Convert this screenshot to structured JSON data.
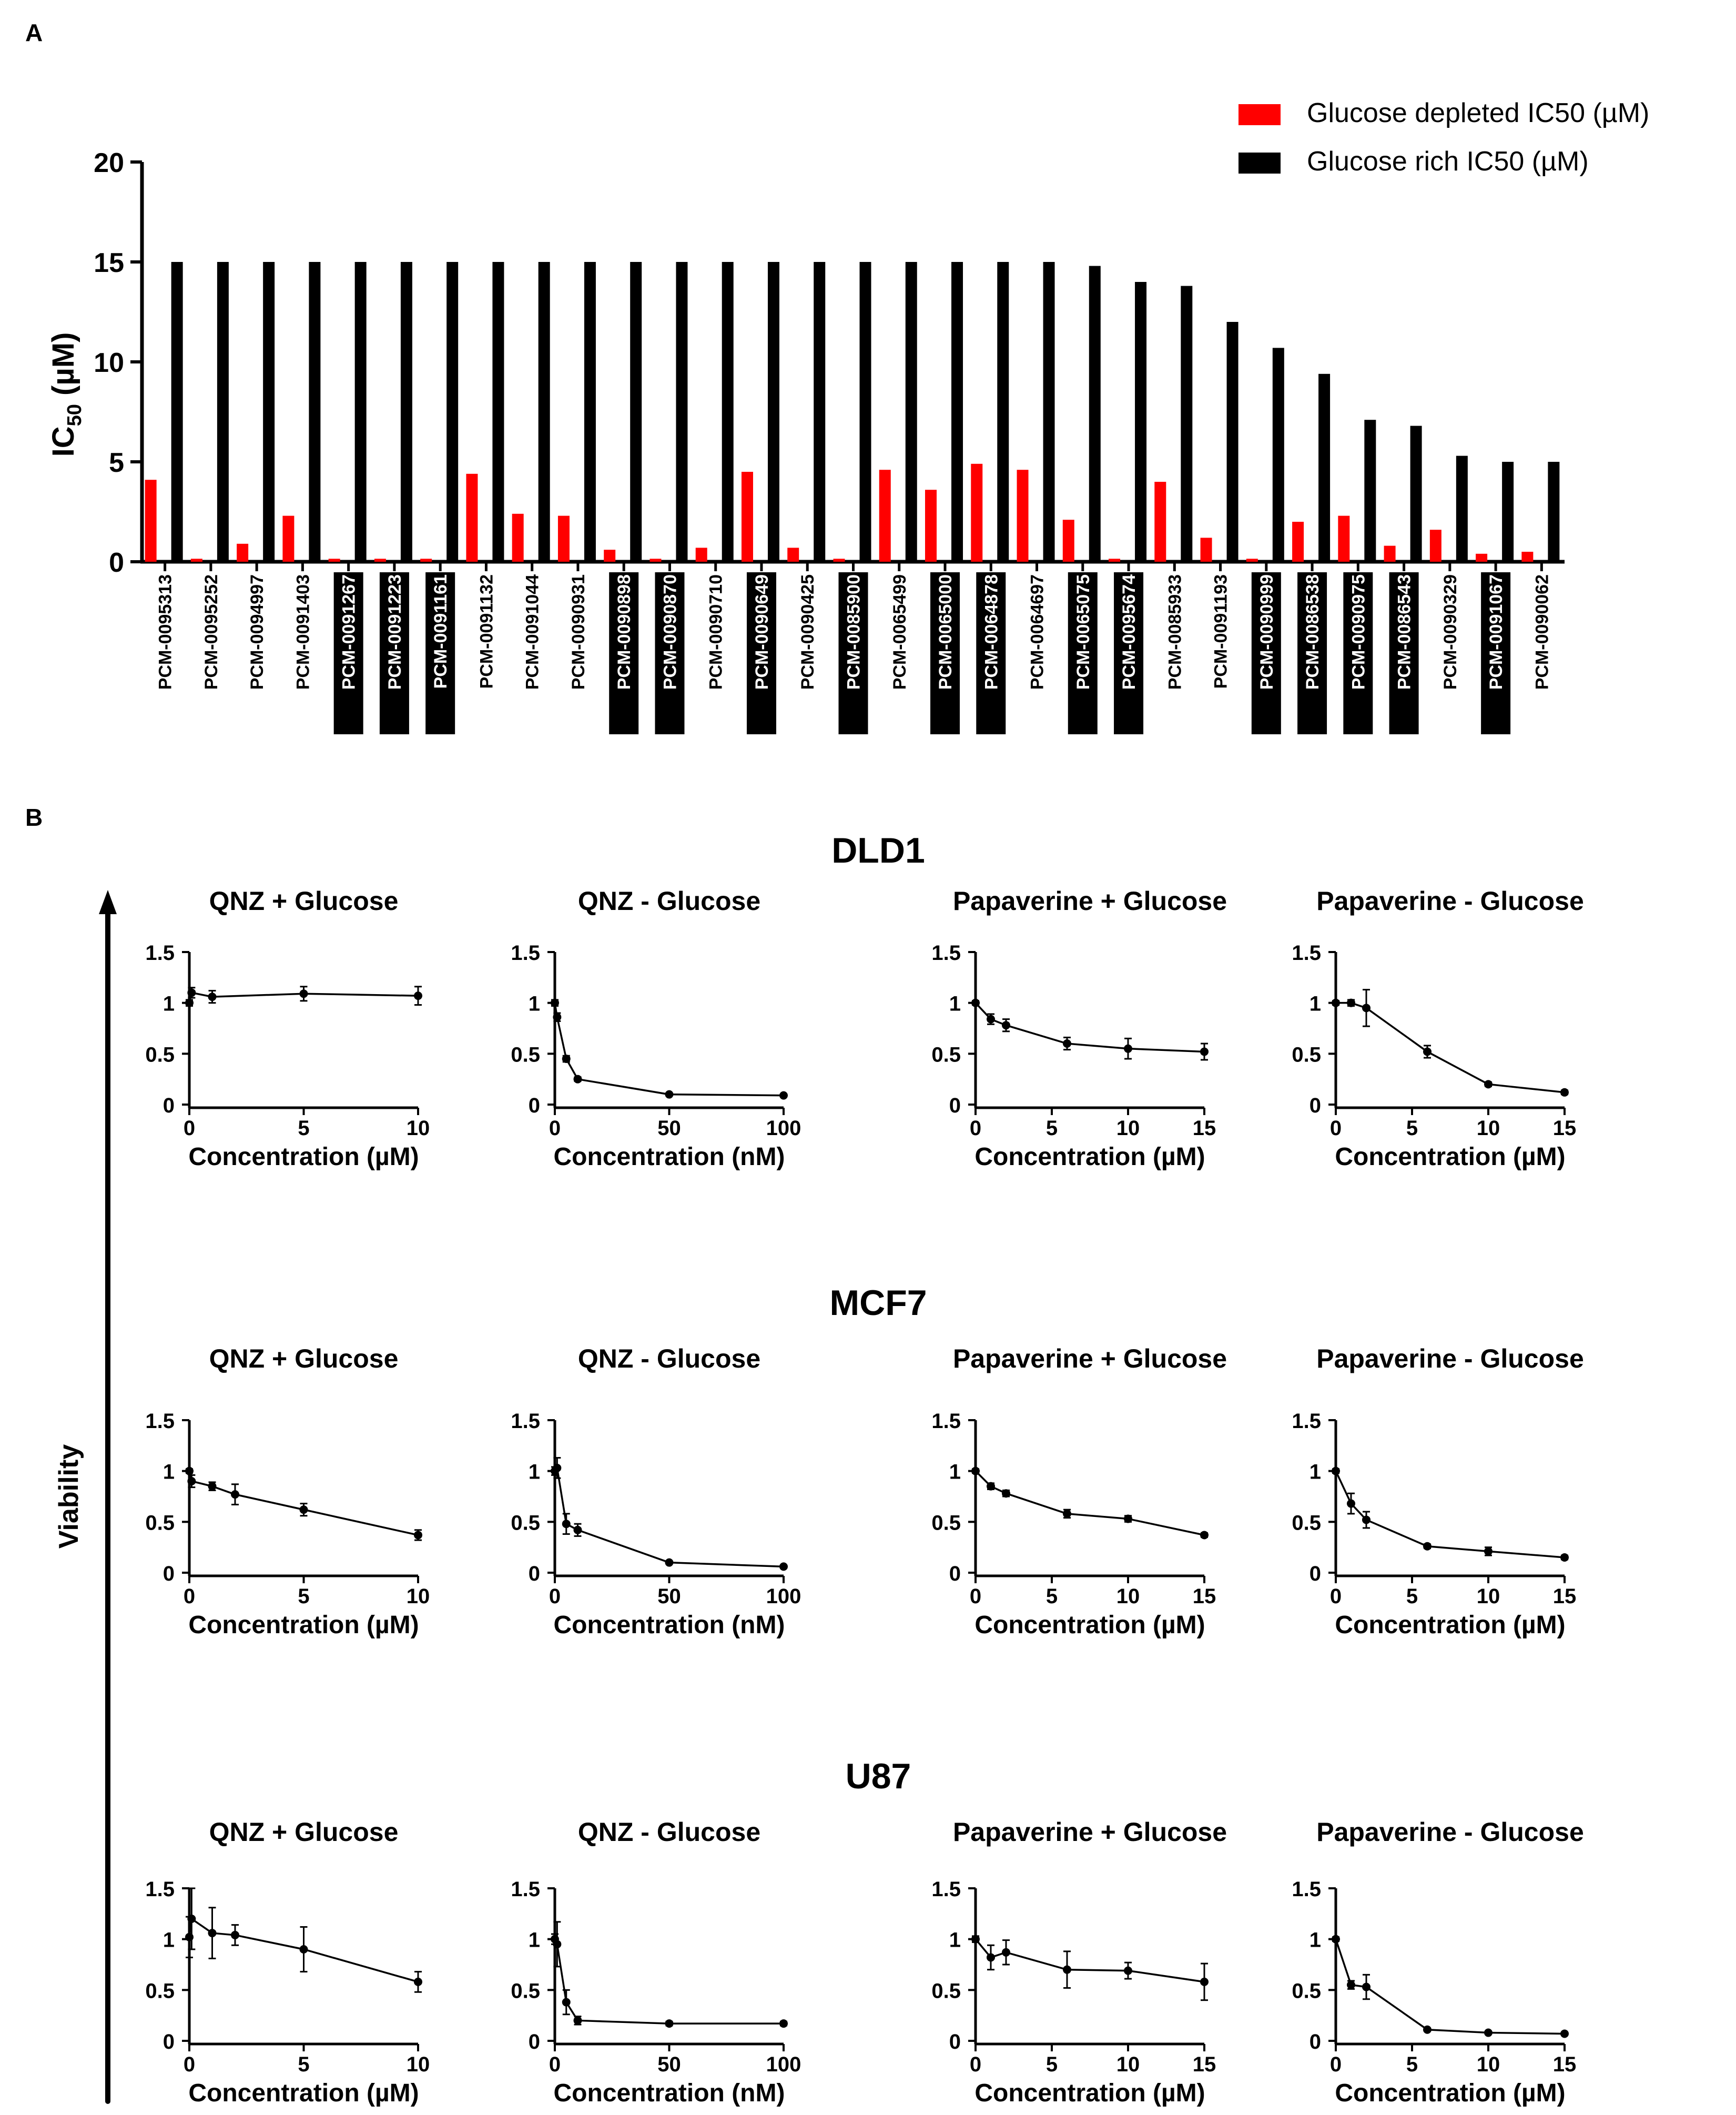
{
  "panel_a": {
    "label": "A"
  },
  "panel_b": {
    "label": "B",
    "y_label": "Viability",
    "cell_lines": [
      "DLD1",
      "MCF7",
      "U87"
    ],
    "subplot_titles": [
      "QNZ + Glucose",
      "QNZ - Glucose",
      "Papaverine + Glucose",
      "Papaverine - Glucose"
    ],
    "x_labels": [
      "Concentration (µM)",
      "Concentration (nM)",
      "Concentration (µM)",
      "Concentration (µM)"
    ]
  },
  "colors": {
    "depleted": "#ff0000",
    "rich": "#000000"
  },
  "chart_data": [
    {
      "type": "bar",
      "id": "panel-a",
      "title": "",
      "xlabel": "",
      "ylabel": "IC50 (µM)",
      "ylabel_main": "IC",
      "ylabel_sub": "50",
      "ylabel_unit": " (µM)",
      "ylim": [
        0,
        20
      ],
      "yticks": [
        0,
        5,
        10,
        15,
        20
      ],
      "legend": "top-right",
      "categories": [
        "PCM-0095313",
        "PCM-0095252",
        "PCM-0094997",
        "PCM-0091403",
        "PCM-0091267",
        "PCM-0091223",
        "PCM-0091161",
        "PCM-0091132",
        "PCM-0091044",
        "PCM-0090931",
        "PCM-0090898",
        "PCM-0090870",
        "PCM-0090710",
        "PCM-0090649",
        "PCM-0090425",
        "PCM-0085900",
        "PCM-0065499",
        "PCM-0065000",
        "PCM-0064878",
        "PCM-0064697",
        "PCM-0065075",
        "PCM-0095674",
        "PCM-0085933",
        "PCM-0091193",
        "PCM-0090999",
        "PCM-0086538",
        "PCM-0090975",
        "PCM-0086543",
        "PCM-0090329",
        "PCM-0091067",
        "PCM-0090062"
      ],
      "highlighted": [
        false,
        false,
        false,
        false,
        true,
        true,
        true,
        false,
        false,
        false,
        true,
        true,
        false,
        true,
        false,
        true,
        false,
        true,
        true,
        false,
        true,
        true,
        false,
        false,
        true,
        true,
        true,
        true,
        false,
        true,
        false
      ],
      "series": [
        {
          "name": "Glucose depleted IC50 (µM)",
          "values": [
            4.1,
            0.15,
            0.9,
            2.3,
            0.15,
            0.15,
            0.15,
            4.4,
            2.4,
            2.3,
            0.6,
            0.15,
            0.7,
            4.5,
            0.7,
            0.15,
            4.6,
            3.6,
            4.9,
            4.6,
            2.1,
            0.15,
            4.0,
            1.2,
            0.15,
            2.0,
            2.3,
            0.8,
            1.6,
            0.4,
            0.5
          ]
        },
        {
          "name": "Glucose rich IC50 (µM)",
          "values": [
            15,
            15,
            15,
            15,
            15,
            15,
            15,
            15,
            15,
            15,
            15,
            15,
            15,
            15,
            15,
            15,
            15,
            15,
            15,
            15,
            14.8,
            14,
            13.8,
            12,
            10.7,
            9.4,
            7.1,
            6.8,
            5.3,
            5.0,
            5.0
          ]
        }
      ]
    },
    {
      "type": "line",
      "cell_line": "DLD1",
      "title": "QNZ + Glucose",
      "xlabel": "Concentration (µM)",
      "ylabel": "Viability",
      "xlim": [
        0,
        10
      ],
      "xticks": [
        0,
        5,
        10
      ],
      "ylim": [
        0,
        1.5
      ],
      "yticks": [
        0,
        0.5,
        1,
        1.5
      ],
      "x": [
        0,
        0.1,
        1,
        5,
        10
      ],
      "y": [
        1.0,
        1.1,
        1.06,
        1.09,
        1.07
      ],
      "err": [
        0.03,
        0.05,
        0.06,
        0.07,
        0.09
      ]
    },
    {
      "type": "line",
      "cell_line": "DLD1",
      "title": "QNZ - Glucose",
      "xlabel": "Concentration (nM)",
      "ylabel": "Viability",
      "xlim": [
        0,
        100
      ],
      "xticks": [
        0,
        50,
        100
      ],
      "ylim": [
        0,
        1.5
      ],
      "yticks": [
        0,
        0.5,
        1,
        1.5
      ],
      "x": [
        0,
        1,
        5,
        10,
        50,
        100
      ],
      "y": [
        1.0,
        0.86,
        0.45,
        0.25,
        0.1,
        0.09
      ],
      "err": [
        0.03,
        0.04,
        0.03,
        0.02,
        0.01,
        0.01
      ]
    },
    {
      "type": "line",
      "cell_line": "DLD1",
      "title": "Papaverine + Glucose",
      "xlabel": "Concentration (µM)",
      "ylabel": "Viability",
      "xlim": [
        0,
        15
      ],
      "xticks": [
        0,
        5,
        10,
        15
      ],
      "ylim": [
        0,
        1.5
      ],
      "yticks": [
        0,
        0.5,
        1,
        1.5
      ],
      "x": [
        0,
        1,
        2,
        6,
        10,
        15
      ],
      "y": [
        1.0,
        0.84,
        0.78,
        0.6,
        0.55,
        0.52
      ],
      "err": [
        0.02,
        0.05,
        0.06,
        0.06,
        0.1,
        0.08
      ]
    },
    {
      "type": "line",
      "cell_line": "DLD1",
      "title": "Papaverine - Glucose",
      "xlabel": "Concentration (µM)",
      "ylabel": "Viability",
      "xlim": [
        0,
        15
      ],
      "xticks": [
        0,
        5,
        10,
        15
      ],
      "ylim": [
        0,
        1.5
      ],
      "yticks": [
        0,
        0.5,
        1,
        1.5
      ],
      "x": [
        0,
        1,
        2,
        6,
        10,
        15
      ],
      "y": [
        1.0,
        1.0,
        0.95,
        0.52,
        0.2,
        0.12
      ],
      "err": [
        0.02,
        0.03,
        0.18,
        0.06,
        0.02,
        0.02
      ]
    },
    {
      "type": "line",
      "cell_line": "MCF7",
      "title": "QNZ + Glucose",
      "xlabel": "Concentration (µM)",
      "ylabel": "Viability",
      "xlim": [
        0,
        10
      ],
      "xticks": [
        0,
        5,
        10
      ],
      "ylim": [
        0,
        1.5
      ],
      "yticks": [
        0,
        0.5,
        1,
        1.5
      ],
      "x": [
        0,
        0.1,
        1,
        2,
        5,
        10
      ],
      "y": [
        1.0,
        0.9,
        0.85,
        0.77,
        0.62,
        0.37
      ],
      "err": [
        0.02,
        0.06,
        0.04,
        0.1,
        0.06,
        0.05
      ]
    },
    {
      "type": "line",
      "cell_line": "MCF7",
      "title": "QNZ - Glucose",
      "xlabel": "Concentration (nM)",
      "ylabel": "Viability",
      "xlim": [
        0,
        100
      ],
      "xticks": [
        0,
        50,
        100
      ],
      "ylim": [
        0,
        1.5
      ],
      "yticks": [
        0,
        0.5,
        1,
        1.5
      ],
      "x": [
        0,
        1,
        5,
        10,
        50,
        100
      ],
      "y": [
        1.0,
        1.03,
        0.48,
        0.42,
        0.1,
        0.06
      ],
      "err": [
        0.04,
        0.1,
        0.1,
        0.06,
        0.01,
        0.01
      ]
    },
    {
      "type": "line",
      "cell_line": "MCF7",
      "title": "Papaverine + Glucose",
      "xlabel": "Concentration (µM)",
      "ylabel": "Viability",
      "xlim": [
        0,
        15
      ],
      "xticks": [
        0,
        5,
        10,
        15
      ],
      "ylim": [
        0,
        1.5
      ],
      "yticks": [
        0,
        0.5,
        1,
        1.5
      ],
      "x": [
        0,
        1,
        2,
        6,
        10,
        15
      ],
      "y": [
        1.0,
        0.85,
        0.78,
        0.58,
        0.53,
        0.37
      ],
      "err": [
        0.02,
        0.03,
        0.03,
        0.04,
        0.03,
        0.02
      ]
    },
    {
      "type": "line",
      "cell_line": "MCF7",
      "title": "Papaverine - Glucose",
      "xlabel": "Concentration (µM)",
      "ylabel": "Viability",
      "xlim": [
        0,
        15
      ],
      "xticks": [
        0,
        5,
        10,
        15
      ],
      "ylim": [
        0,
        1.5
      ],
      "yticks": [
        0,
        0.5,
        1,
        1.5
      ],
      "x": [
        0,
        1,
        2,
        6,
        10,
        15
      ],
      "y": [
        1.0,
        0.68,
        0.52,
        0.26,
        0.21,
        0.15
      ],
      "err": [
        0.02,
        0.1,
        0.08,
        0.02,
        0.04,
        0.02
      ]
    },
    {
      "type": "line",
      "cell_line": "U87",
      "title": "QNZ + Glucose",
      "xlabel": "Concentration (µM)",
      "ylabel": "Viability",
      "xlim": [
        0,
        10
      ],
      "xticks": [
        0,
        5,
        10
      ],
      "ylim": [
        0,
        1.5
      ],
      "yticks": [
        0,
        0.5,
        1,
        1.5
      ],
      "x": [
        0,
        0.1,
        1,
        2,
        5,
        10
      ],
      "y": [
        1.02,
        1.2,
        1.06,
        1.04,
        0.9,
        0.58
      ],
      "err": [
        0.2,
        0.3,
        0.25,
        0.1,
        0.22,
        0.1
      ]
    },
    {
      "type": "line",
      "cell_line": "U87",
      "title": "QNZ - Glucose",
      "xlabel": "Concentration (nM)",
      "ylabel": "Viability",
      "xlim": [
        0,
        100
      ],
      "xticks": [
        0,
        50,
        100
      ],
      "ylim": [
        0,
        1.5
      ],
      "yticks": [
        0,
        0.5,
        1,
        1.5
      ],
      "x": [
        0,
        1,
        5,
        10,
        50,
        100
      ],
      "y": [
        1.0,
        0.95,
        0.38,
        0.2,
        0.17,
        0.17
      ],
      "err": [
        0.05,
        0.22,
        0.12,
        0.04,
        0.02,
        0.02
      ]
    },
    {
      "type": "line",
      "cell_line": "U87",
      "title": "Papaverine + Glucose",
      "xlabel": "Concentration (µM)",
      "ylabel": "Viability",
      "xlim": [
        0,
        15
      ],
      "xticks": [
        0,
        5,
        10,
        15
      ],
      "ylim": [
        0,
        1.5
      ],
      "yticks": [
        0,
        0.5,
        1,
        1.5
      ],
      "x": [
        0,
        1,
        2,
        6,
        10,
        15
      ],
      "y": [
        1.0,
        0.82,
        0.87,
        0.7,
        0.69,
        0.58
      ],
      "err": [
        0.03,
        0.12,
        0.12,
        0.18,
        0.08,
        0.18
      ]
    },
    {
      "type": "line",
      "cell_line": "U87",
      "title": "Papaverine - Glucose",
      "xlabel": "Concentration (µM)",
      "ylabel": "Viability",
      "xlim": [
        0,
        15
      ],
      "xticks": [
        0,
        5,
        10,
        15
      ],
      "ylim": [
        0,
        1.5
      ],
      "yticks": [
        0,
        0.5,
        1,
        1.5
      ],
      "x": [
        0,
        1,
        2,
        6,
        10,
        15
      ],
      "y": [
        1.0,
        0.55,
        0.53,
        0.11,
        0.08,
        0.07
      ],
      "err": [
        0.02,
        0.04,
        0.12,
        0.01,
        0.01,
        0.01
      ]
    }
  ]
}
